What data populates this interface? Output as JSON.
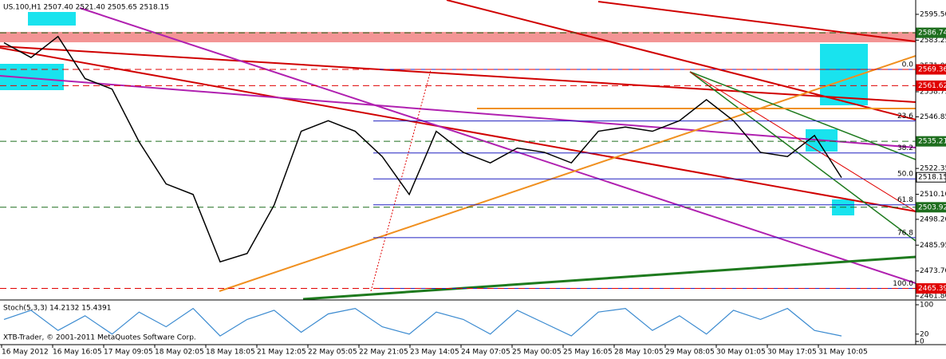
{
  "chart_data": {
    "type": "line",
    "title": "US.100,H1  2507.40 2521.40 2505.65 2518.15",
    "values": [
      2582,
      2575,
      2585,
      2565,
      2560,
      2535,
      2515,
      2510,
      2478,
      2482,
      2505,
      2540,
      2545,
      2540,
      2528,
      2510,
      2540,
      2530,
      2525,
      2532,
      2530,
      2525,
      2540,
      2542,
      2540,
      2545,
      2555,
      2545,
      2530,
      2528,
      2538,
      2518
    ],
    "color": "#000000",
    "ylim": [
      2460.3,
      2602.3
    ],
    "yticks": [
      {
        "value": 2595.5,
        "label": "2595.50"
      },
      2583.25,
      {
        "value": 2571,
        "label": "2571.00"
      },
      2558.75,
      2546.85,
      2522.35,
      {
        "value": 2510.1,
        "label": "2510.10"
      },
      {
        "value": 2498.2,
        "label": "2498.20"
      },
      2485.95,
      {
        "value": 2473.7,
        "label": "2473.70"
      },
      {
        "value": 2461.8,
        "label": "2461.80"
      }
    ],
    "levels": [
      {
        "value": 2586.74,
        "color": "#1e6e1e"
      },
      {
        "value": 2569.36,
        "color": "#e00000"
      },
      {
        "value": 2561.62,
        "color": "#e00000"
      },
      {
        "value": 2535.21,
        "color": "#1e6e1e"
      },
      {
        "value": 2518.15,
        "color": "#ffffff"
      },
      {
        "value": 2503.92,
        "color": "#1e6e1e"
      },
      {
        "value": 2465.39,
        "color": "#e00000"
      }
    ],
    "fibo": [
      {
        "label": "0.0",
        "value": 2569.36
      },
      {
        "label": "23.6",
        "value": 2544.9
      },
      {
        "label": "38.2",
        "value": 2529.7
      },
      {
        "label": "50.0",
        "value": 2517.4
      },
      {
        "label": "61.8",
        "value": 2505.1
      },
      {
        "label": "76.8",
        "value": 2489.5
      },
      {
        "label": "100.0",
        "value": 2465.39
      }
    ],
    "time_labels": [
      "16 May 2012",
      "16 May 16:05",
      "17 May 09:05",
      "18 May 02:05",
      "18 May 18:05",
      "21 May 12:05",
      "22 May 05:05",
      "22 May 21:05",
      "23 May 14:05",
      "24 May 07:05",
      "25 May 00:05",
      "25 May 16:05",
      "28 May 10:05",
      "29 May 08:05",
      "30 May 01:05",
      "30 May 17:05",
      "31 May 10:05"
    ],
    "stoch": {
      "title": "Stoch(5,3,3) 14.2132 15.4391",
      "ylim": [
        0,
        100
      ],
      "yticks": [
        100,
        20,
        0
      ],
      "values": [
        60,
        85,
        30,
        70,
        20,
        80,
        40,
        90,
        15,
        60,
        85,
        25,
        75,
        90,
        40,
        20,
        80,
        60,
        20,
        85,
        50,
        15,
        80,
        90,
        30,
        70,
        20,
        85,
        60,
        90,
        30,
        15
      ],
      "color": "#3a8ad0"
    },
    "footer": "XTB-Trader, © 2001-2011 MetaQuotes Software Corp."
  }
}
